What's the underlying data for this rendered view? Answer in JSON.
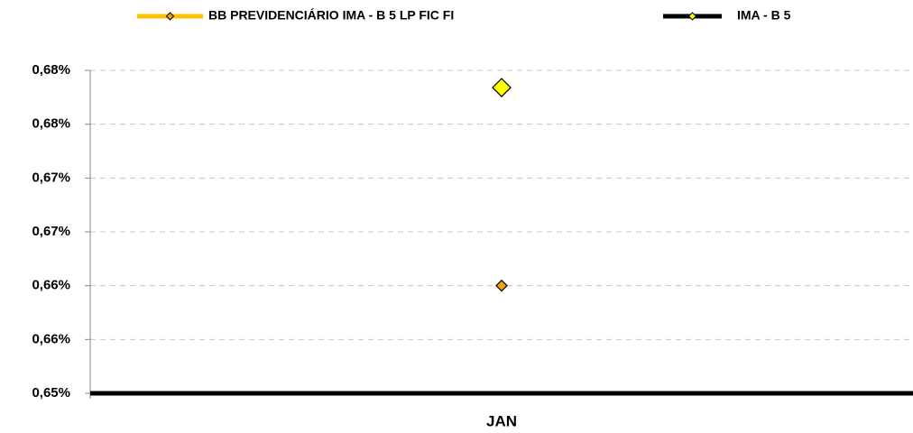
{
  "chart_data": {
    "type": "line",
    "categories": [
      "JAN"
    ],
    "series": [
      {
        "name": "BB PREVIDENCIÁRIO IMA - B 5 LP FIC FI",
        "color": "#FFC000",
        "marker_color": "#F0A30A",
        "values": [
          0.66
        ]
      },
      {
        "name": "IMA - B 5",
        "color": "#000000",
        "marker_color": "#FFFF00",
        "values": [
          0.6784
        ]
      }
    ],
    "ylim": [
      0.65,
      0.68
    ],
    "yticks": [
      {
        "value": 0.65,
        "label": "0,65%"
      },
      {
        "value": 0.655,
        "label": "0,66%"
      },
      {
        "value": 0.66,
        "label": "0,66%"
      },
      {
        "value": 0.665,
        "label": "0,67%"
      },
      {
        "value": 0.67,
        "label": "0,67%"
      },
      {
        "value": 0.675,
        "label": "0,68%"
      },
      {
        "value": 0.68,
        "label": "0,68%"
      }
    ],
    "grid": true,
    "legend": "top"
  }
}
